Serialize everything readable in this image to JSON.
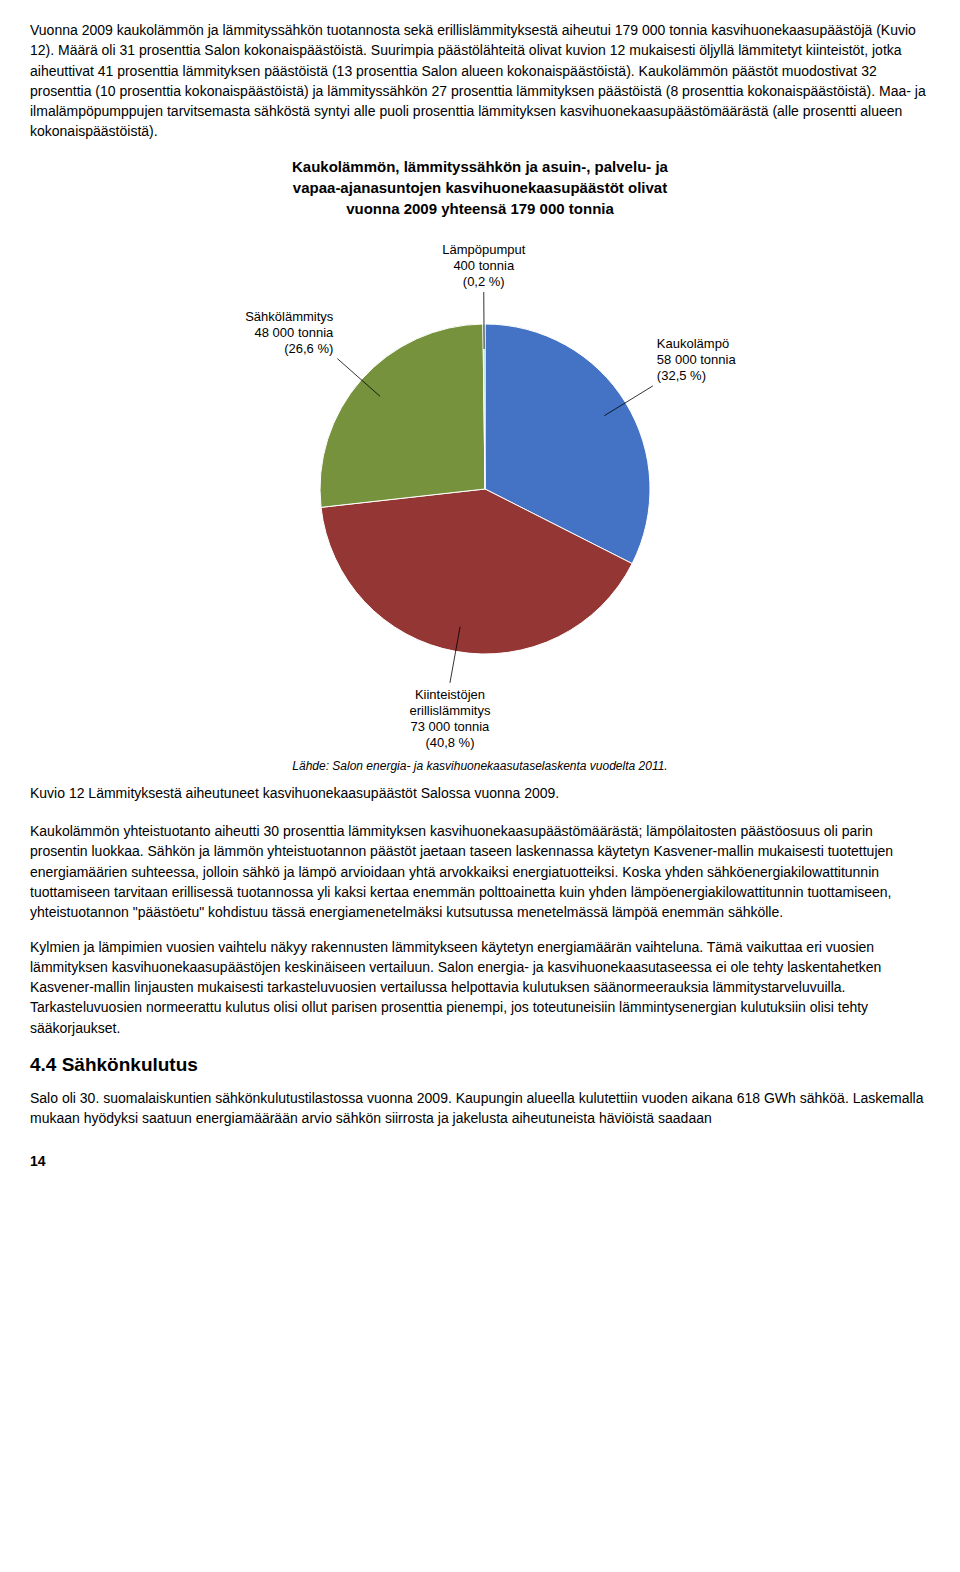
{
  "chart_data": {
    "type": "pie",
    "title": "Kaukolämmön, lämmityssähkön ja asuin-, palvelu- ja\nvapaa-ajanasuntojen kasvihuonekaasupäästöt olivat\nvuonna 2009 yhteensä 179 000 tonnia",
    "values": [
      32.5,
      40.8,
      26.6,
      0.2
    ],
    "value_labels": [
      "Kaukolämpö\n58 000 tonnia\n(32,5 %)",
      "Kiinteistöjen\nerillislämmitys\n73 000 tonnia\n(40,8 %)",
      "Sähkölämmitys\n48 000 tonnia\n(26,6 %)",
      "Lämpöpumput\n400 tonnia\n(0,2 %)"
    ],
    "colors": [
      "#4472C4",
      "#943634",
      "#76923C",
      "#92CDDC"
    ],
    "data_labels": true,
    "annotations": [
      "Lähde: Salon energia- ja kasvihuonekaasutaselaskenta vuodelta 2011."
    ]
  },
  "page_text": {
    "before": [
      "Vuonna 2009 kaukolämmön ja lämmityssähkön tuotannosta sekä erillislämmityksestä aiheutui 179 000 tonnia kasvihuonekaasupäästöjä (Kuvio 12). Määrä oli 31 prosenttia Salon kokonaispäästöistä. Suurimpia päästölähteitä olivat kuvion 12 mukaisesti öljyllä lämmitetyt kiinteistöt, jotka aiheuttivat 41 prosenttia lämmityksen päästöistä (13 prosenttia Salon alueen kokonaispäästöistä). Kaukolämmön päästöt muodostivat 32 prosenttia (10 prosenttia kokonaispäästöistä) ja lämmityssähkön 27 prosenttia lämmityksen päästöistä (8 prosenttia kokonaispäästöistä). Maa- ja ilmalämpöpumppujen tarvitsemasta sähköstä syntyi alle puoli prosenttia lämmityksen kasvihuonekaasupäästömäärästä (alle prosentti alueen kokonaispäästöistä)."
    ],
    "caption": "Kuvio 12 Lämmityksestä aiheutuneet kasvihuonekaasupäästöt Salossa vuonna 2009.",
    "after": [
      "Kaukolämmön yhteistuotanto aiheutti 30 prosenttia lämmityksen kasvihuonekaasupäästömäärästä; lämpölaitosten päästöosuus oli parin prosentin luokkaa. Sähkön ja lämmön yhteistuotannon päästöt jaetaan taseen laskennassa käytetyn Kasvener-mallin mukaisesti tuotettujen energiamäärien suhteessa, jolloin sähkö ja lämpö arvioidaan yhtä arvokkaiksi energiatuotteiksi. Koska yhden sähköenergiakilowattitunnin tuottamiseen tarvitaan erillisessä tuotannossa yli kaksi kertaa enemmän polttoainetta kuin yhden lämpöenergiakilowattitunnin tuottamiseen, yhteistuotannon \"päästöetu\" kohdistuu tässä energiamenetelmäksi kutsutussa menetelmässä lämpöä enemmän sähkölle.",
      "Kylmien ja lämpimien vuosien vaihtelu näkyy rakennusten lämmitykseen käytetyn energiamäärän vaihteluna. Tämä vaikuttaa eri vuosien lämmityksen kasvihuonekaasupäästöjen keskinäiseen vertailuun. Salon energia- ja kasvihuonekaasutaseessa ei ole tehty laskentahetken Kasvener-mallin linjausten mukaisesti tarkasteluvuosien vertailussa helpottavia kulutuksen säänormeerauksia lämmitystarveluvuilla. Tarkasteluvuosien normeerattu kulutus olisi ollut parisen prosenttia pienempi, jos toteutuneisiin lämmintysenergian kulutuksiin olisi tehty sääkorjaukset."
    ],
    "section": "4.4 Sähkönkulutus",
    "section_text": [
      "Salo oli 30. suomalaiskuntien sähkönkulutustilastossa vuonna 2009. Kaupungin alueella kulutettiin vuoden aikana 618 GWh sähköä. Laskemalla mukaan hyödyksi saatuun energiamäärään arvio sähkön siirrosta ja jakelusta aiheutuneista häviöistä saadaan"
    ],
    "page_number": "14"
  }
}
